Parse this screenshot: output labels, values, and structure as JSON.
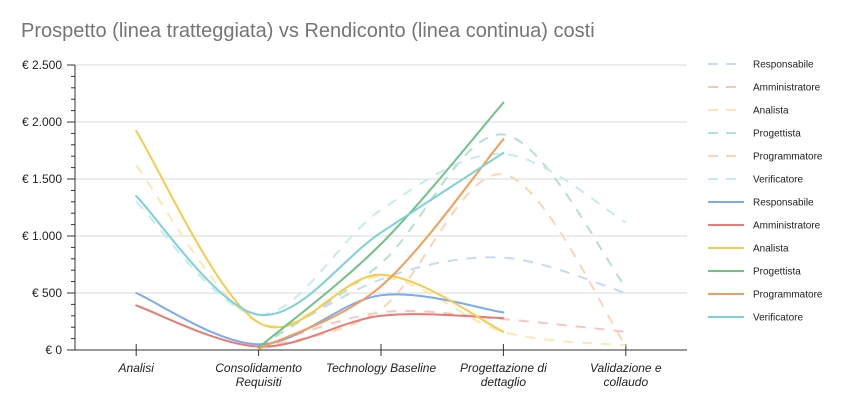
{
  "chart_data": {
    "type": "line",
    "title": "Prospetto (linea tratteggiata) vs Rendiconto (linea continua) costi",
    "categories": [
      [
        "Analisi"
      ],
      [
        "Consolidamento",
        "Requisiti"
      ],
      [
        "Technology Baseline"
      ],
      [
        "Progettazione di",
        "dettaglio"
      ],
      [
        "Validazione e",
        "collaudo"
      ]
    ],
    "ylim": [
      0,
      2500
    ],
    "yticks": [
      0,
      500,
      1000,
      1500,
      2000,
      2500
    ],
    "ytick_labels": [
      "€ 0",
      "€ 500",
      "€ 1.000",
      "€ 1.500",
      "€ 2.000",
      "€ 2.500"
    ],
    "grid": true,
    "legend_position": "right",
    "series": [
      {
        "name": "Responsabile",
        "style": "dashed",
        "color": "#c6d9f5",
        "values": [
          null,
          30,
          620,
          810,
          500
        ]
      },
      {
        "name": "Amministratore",
        "style": "dashed",
        "color": "#f4c7c3",
        "values": [
          null,
          20,
          330,
          270,
          160
        ]
      },
      {
        "name": "Analista",
        "style": "dashed",
        "color": "#fce8b2",
        "values": [
          1620,
          240,
          640,
          160,
          40
        ]
      },
      {
        "name": "Progettista",
        "style": "dashed",
        "color": "#b7e1cd",
        "values": [
          null,
          30,
          760,
          1890,
          550
        ]
      },
      {
        "name": "Programmatore",
        "style": "dashed",
        "color": "#fcd5b5",
        "values": [
          null,
          20,
          360,
          1540,
          40
        ]
      },
      {
        "name": "Verificatore",
        "style": "dashed",
        "color": "#c5ecef",
        "values": [
          1300,
          310,
          1230,
          1720,
          1120
        ]
      },
      {
        "name": "Responsabile",
        "style": "solid",
        "color": "#7baaf7",
        "values": [
          500,
          50,
          480,
          330,
          null
        ]
      },
      {
        "name": "Amministratore",
        "style": "solid",
        "color": "#e67c73",
        "values": [
          390,
          30,
          300,
          280,
          null
        ]
      },
      {
        "name": "Analista",
        "style": "solid",
        "color": "#f7cb4d",
        "values": [
          1920,
          240,
          660,
          160,
          null
        ]
      },
      {
        "name": "Progettista",
        "style": "solid",
        "color": "#6fc386",
        "values": [
          null,
          20,
          930,
          2170,
          null
        ]
      },
      {
        "name": "Programmatore",
        "style": "solid",
        "color": "#f59d56",
        "values": [
          null,
          10,
          560,
          1850,
          null
        ]
      },
      {
        "name": "Verificatore",
        "style": "solid",
        "color": "#7ed1d7",
        "values": [
          1350,
          310,
          1030,
          1730,
          null
        ]
      }
    ]
  }
}
